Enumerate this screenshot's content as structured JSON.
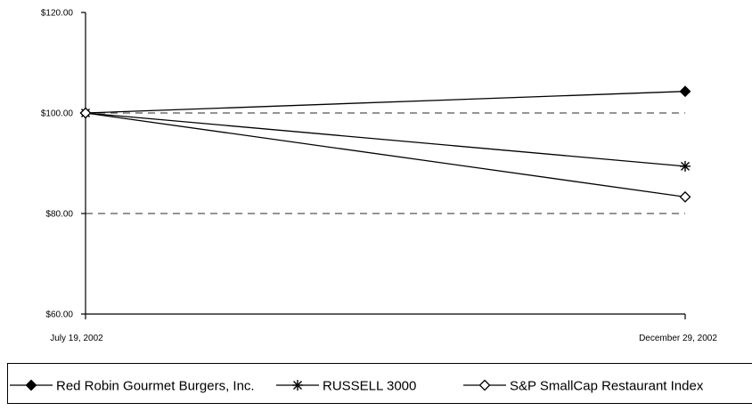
{
  "chart_data": {
    "type": "line",
    "x": [
      "July 19, 2002",
      "December 29, 2002"
    ],
    "ylim": [
      60,
      120
    ],
    "yticks": [
      60,
      80,
      100,
      120
    ],
    "ytick_labels": [
      "$60.00",
      "$80.00",
      "$100.00",
      "$120.00"
    ],
    "dashed_gridlines": [
      80,
      100
    ],
    "legend_placement": "bottom",
    "series": [
      {
        "name": "Red Robin Gourmet Burgers, Inc.",
        "marker": "diamond-filled",
        "values": [
          100.0,
          104.3
        ]
      },
      {
        "name": "RUSSELL 3000",
        "marker": "asterisk",
        "values": [
          100.0,
          89.4
        ]
      },
      {
        "name": "S&P SmallCap Restaurant Index",
        "marker": "diamond-open",
        "values": [
          100.0,
          83.3
        ]
      }
    ]
  }
}
